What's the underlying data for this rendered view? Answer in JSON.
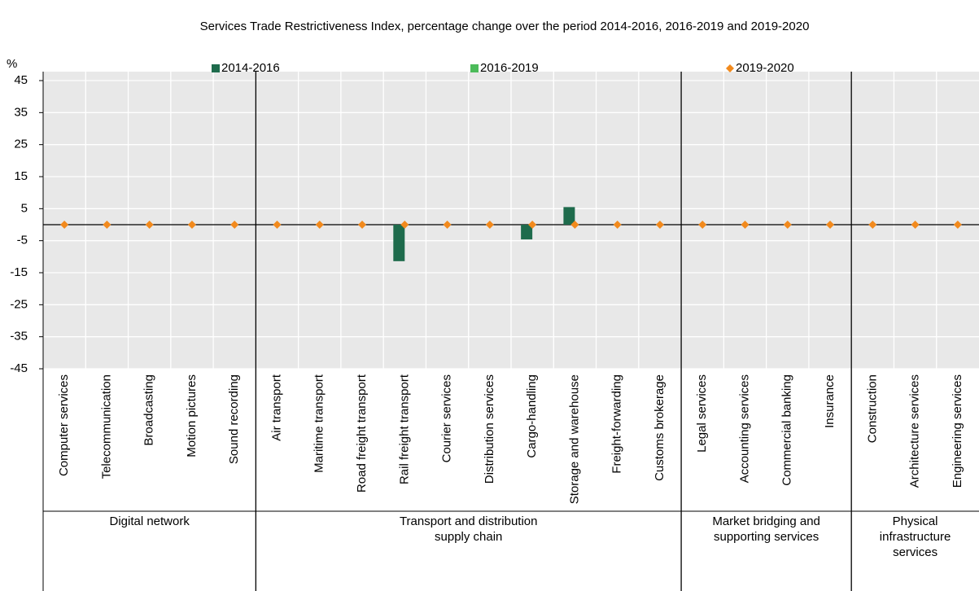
{
  "chart_data": {
    "type": "bar",
    "title": "Services Trade Restrictiveness Index, percentage change over the period 2014-2016, 2016-2019 and 2019-2020",
    "y_label": "%",
    "groups": [
      {
        "label": "Digital network",
        "categories": [
          "Computer services",
          "Telecommunication",
          "Broadcasting",
          "Motion pictures",
          "Sound recording"
        ]
      },
      {
        "label": "Transport and distribution supply chain",
        "categories": [
          "Air transport",
          "Maritime transport",
          "Road freight transport",
          "Rail freight transport",
          "Courier services",
          "Distribution services",
          "Cargo-handling",
          "Storage and warehouse",
          "Freight-forwarding",
          "Customs brokerage"
        ]
      },
      {
        "label": "Market bridging and supporting services",
        "categories": [
          "Legal services",
          "Accounting services",
          "Commercial banking",
          "Insurance"
        ]
      },
      {
        "label": "Physical infrastructure services",
        "categories": [
          "Construction",
          "Architecture services",
          "Engineering services"
        ]
      }
    ],
    "series": [
      {
        "name": "2014-2016",
        "color": "#1e6b4c",
        "style": "bar",
        "values": [
          0,
          0,
          0,
          0,
          0,
          0,
          0,
          0,
          -11.4,
          0,
          0,
          -4.6,
          5.5,
          0,
          0,
          0,
          0,
          0,
          0,
          0,
          0,
          0
        ]
      },
      {
        "name": "2016-2019",
        "color": "#4cbb5a",
        "style": "bar",
        "values": [
          0,
          0,
          0,
          0,
          0,
          0,
          0,
          0,
          0,
          0,
          0,
          0,
          0,
          0,
          0,
          0,
          0,
          0,
          0,
          0,
          0,
          0
        ]
      },
      {
        "name": "2019-2020",
        "color": "#f28a1d",
        "style": "diamond",
        "values": [
          0,
          0,
          0,
          0,
          0,
          0,
          0,
          0,
          0,
          0,
          0,
          0,
          0,
          0,
          0,
          0,
          0,
          0,
          0,
          0,
          0,
          0
        ]
      }
    ],
    "ylim": [
      -45,
      45
    ],
    "yticks": [
      -45,
      -35,
      -25,
      -15,
      -5,
      5,
      15,
      25,
      35,
      45
    ],
    "grid": true
  }
}
